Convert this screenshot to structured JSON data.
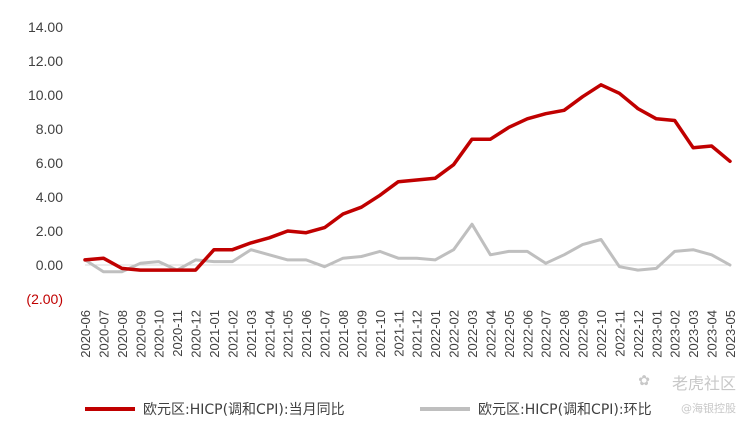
{
  "chart_data": {
    "type": "line",
    "title": "",
    "xlabel": "",
    "ylabel": "",
    "ylim": [
      -2,
      14
    ],
    "yticks": [
      14,
      12,
      10,
      8,
      6,
      4,
      2,
      0,
      -2
    ],
    "ytick_labels": [
      "14.00",
      "12.00",
      "10.00",
      "8.00",
      "6.00",
      "4.00",
      "2.00",
      "0.00",
      "(2.00)"
    ],
    "negative_label_color": "#c00000",
    "grid": false,
    "legend_position": "bottom",
    "categories": [
      "2020-06",
      "2020-07",
      "2020-08",
      "2020-09",
      "2020-10",
      "2020-11",
      "2020-12",
      "2021-01",
      "2021-02",
      "2021-03",
      "2021-04",
      "2021-05",
      "2021-06",
      "2021-07",
      "2021-08",
      "2021-09",
      "2021-10",
      "2021-11",
      "2021-12",
      "2022-01",
      "2022-02",
      "2022-03",
      "2022-04",
      "2022-05",
      "2022-06",
      "2022-07",
      "2022-08",
      "2022-09",
      "2022-10",
      "2022-11",
      "2022-12",
      "2023-01",
      "2023-02",
      "2023-03",
      "2023-04",
      "2023-05"
    ],
    "series": [
      {
        "name": "欧元区:HICP(调和CPI):当月同比",
        "color": "#c00000",
        "values": [
          0.3,
          0.4,
          -0.2,
          -0.3,
          -0.3,
          -0.3,
          -0.3,
          0.9,
          0.9,
          1.3,
          1.6,
          2.0,
          1.9,
          2.2,
          3.0,
          3.4,
          4.1,
          4.9,
          5.0,
          5.1,
          5.9,
          7.4,
          7.4,
          8.1,
          8.6,
          8.9,
          9.1,
          9.9,
          10.6,
          10.1,
          9.2,
          8.6,
          8.5,
          6.9,
          7.0,
          6.1
        ]
      },
      {
        "name": "欧元区:HICP(调和CPI):环比",
        "color": "#bfbfbf",
        "values": [
          0.3,
          -0.4,
          -0.4,
          0.1,
          0.2,
          -0.3,
          0.3,
          0.2,
          0.2,
          0.9,
          0.6,
          0.3,
          0.3,
          -0.1,
          0.4,
          0.5,
          0.8,
          0.4,
          0.4,
          0.3,
          0.9,
          2.4,
          0.6,
          0.8,
          0.8,
          0.1,
          0.6,
          1.2,
          1.5,
          -0.1,
          -0.3,
          -0.2,
          0.8,
          0.9,
          0.6,
          0.0
        ]
      }
    ]
  },
  "watermark": {
    "logo_text": "老虎社区",
    "sub_text": "@海银控股",
    "icon": "tiger-claw-icon"
  }
}
